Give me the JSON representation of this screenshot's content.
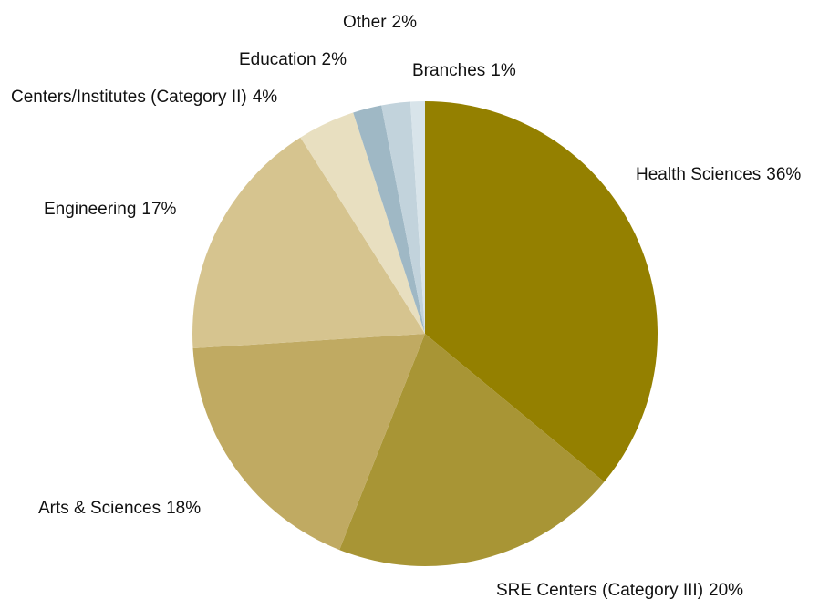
{
  "chart_data": {
    "type": "pie",
    "categories": [
      "Health Sciences",
      "SRE Centers (Category III)",
      "Arts & Sciences",
      "Engineering",
      "Centers/Institutes (Category II)",
      "Education",
      "Other",
      "Branches"
    ],
    "values": [
      36,
      20,
      18,
      17,
      4,
      2,
      2,
      1
    ],
    "value_labels": [
      "36%",
      "20%",
      "18%",
      "17%",
      "4%",
      "2%",
      "2%",
      "1%"
    ],
    "colors": [
      "#948000",
      "#a89535",
      "#c0aa62",
      "#d6c48f",
      "#e8dfc0",
      "#9fb8c5",
      "#c2d3dc",
      "#d8e4ea"
    ]
  }
}
